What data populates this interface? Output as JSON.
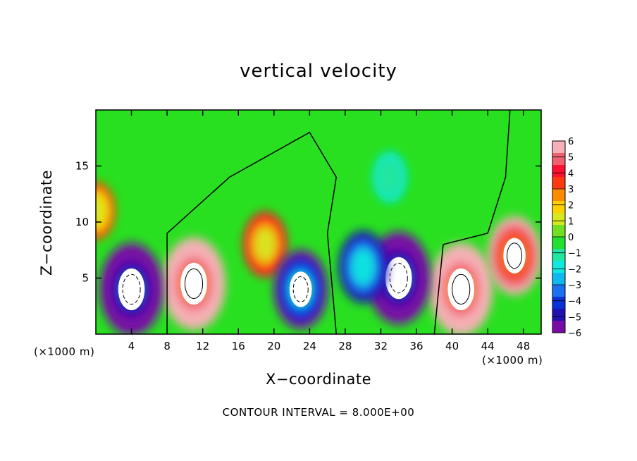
{
  "chart_data": {
    "type": "heatmap",
    "title": "vertical velocity",
    "xlabel": "X−coordinate",
    "ylabel": "Z−coordinate",
    "x_unit_label": "(×1000 m)",
    "y_unit_label": "(×1000 m)",
    "xlim": [
      0,
      50
    ],
    "ylim": [
      0,
      20
    ],
    "x_ticks": [
      4,
      8,
      12,
      16,
      20,
      24,
      28,
      32,
      36,
      40,
      44,
      48
    ],
    "y_ticks": [
      5,
      10,
      15
    ],
    "colorbar": {
      "labels": [
        "6",
        "5",
        "4",
        "3",
        "2",
        "1",
        "0",
        "−1",
        "−2",
        "−3",
        "−4",
        "−5",
        "−6"
      ],
      "min": -6,
      "max": 6,
      "colors": [
        "#7a0aa8",
        "#2010b0",
        "#0a30d8",
        "#1a70f0",
        "#10b8f0",
        "#10e8e0",
        "#20e6a0",
        "#20e030",
        "#70e020",
        "#d8e820",
        "#ffd000",
        "#ff8a00",
        "#ff3a10",
        "#ff1030",
        "#f06070",
        "#f8b0b8"
      ]
    },
    "features": [
      {
        "kind": "updraft",
        "x": 11,
        "z": 4.5,
        "value": 8
      },
      {
        "kind": "updraft",
        "x": 41,
        "z": 4,
        "value": 8
      },
      {
        "kind": "updraft",
        "x": 19,
        "z": 8,
        "value": 4
      },
      {
        "kind": "updraft",
        "x": 47,
        "z": 7,
        "value": 6
      },
      {
        "kind": "downdraft",
        "x": 4,
        "z": 4,
        "value": -8
      },
      {
        "kind": "downdraft",
        "x": 23,
        "z": 4,
        "value": -6
      },
      {
        "kind": "downdraft",
        "x": 34,
        "z": 5,
        "value": -8
      },
      {
        "kind": "downdraft",
        "x": 30,
        "z": 6,
        "value": -5
      },
      {
        "kind": "weak downdraft",
        "x": 33,
        "z": 14,
        "value": -2
      },
      {
        "kind": "weak updraft",
        "x": 0,
        "z": 11,
        "value": 3
      }
    ],
    "footer": "CONTOUR INTERVAL = 8.000E+00"
  }
}
